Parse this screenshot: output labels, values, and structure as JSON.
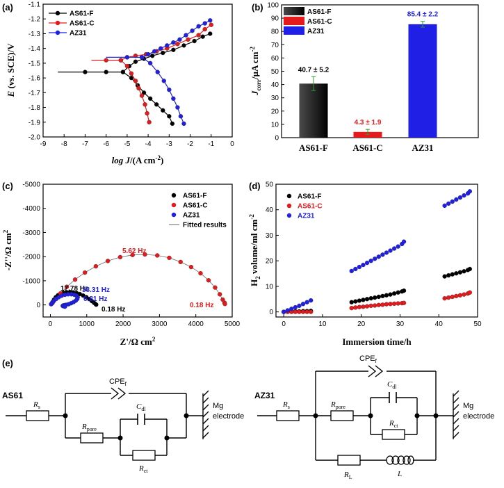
{
  "panels": {
    "a": "(a)",
    "b": "(b)",
    "c": "(c)",
    "d": "(d)",
    "e": "(e)"
  },
  "colors": {
    "AS61-F": "#000000",
    "AS61-C": "#e41a1c",
    "AZ31": "#1f1fe6"
  },
  "chart_data": [
    {
      "id": "a",
      "type": "line",
      "title": "",
      "xlabel": "log J/(A cm⁻²)",
      "ylabel": "E (vs. SCE)/V",
      "xlim": [
        -9,
        0
      ],
      "ylim": [
        -2.0,
        -1.1
      ],
      "xticks": [
        -9,
        -8,
        -7,
        -6,
        -5,
        -4,
        -3,
        -2,
        -1,
        0
      ],
      "yticks": [
        -2.0,
        -1.9,
        -1.8,
        -1.7,
        -1.6,
        -1.5,
        -1.4,
        -1.3,
        -1.2,
        -1.1
      ],
      "legend": [
        "AS61-F",
        "AS61-C",
        "AZ31"
      ],
      "legend_position": "top-left",
      "series": [
        {
          "name": "AS61-F",
          "cathodic": {
            "x": [
              -8.3,
              -7,
              -6,
              -5.2,
              -4.8,
              -4.5,
              -4.2,
              -3.9,
              -3.6,
              -3.3,
              -3.0,
              -2.85
            ],
            "y": [
              -1.56,
              -1.56,
              -1.56,
              -1.56,
              -1.6,
              -1.65,
              -1.7,
              -1.74,
              -1.78,
              -1.82,
              -1.86,
              -1.91
            ]
          },
          "anodic": {
            "x": [
              -5.2,
              -4.9,
              -4.6,
              -4.2,
              -3.8,
              -3.3,
              -2.8,
              -2.3,
              -1.8,
              -1.4,
              -1.05
            ],
            "y": [
              -1.56,
              -1.52,
              -1.49,
              -1.47,
              -1.45,
              -1.43,
              -1.41,
              -1.38,
              -1.35,
              -1.32,
              -1.3
            ]
          }
        },
        {
          "name": "AS61-C",
          "cathodic": {
            "x": [
              -6.7,
              -6.0,
              -5.3,
              -5.0,
              -4.8,
              -4.6,
              -4.45,
              -4.3,
              -4.15,
              -4.05,
              -3.95
            ],
            "y": [
              -1.48,
              -1.48,
              -1.48,
              -1.52,
              -1.57,
              -1.62,
              -1.67,
              -1.72,
              -1.78,
              -1.84,
              -1.9
            ]
          },
          "anodic": {
            "x": [
              -5.3,
              -5.0,
              -4.6,
              -4.1,
              -3.6,
              -3.1,
              -2.6,
              -2.1,
              -1.6,
              -1.3,
              -1.0
            ],
            "y": [
              -1.48,
              -1.46,
              -1.45,
              -1.44,
              -1.42,
              -1.4,
              -1.37,
              -1.34,
              -1.31,
              -1.27,
              -1.24
            ]
          }
        },
        {
          "name": "AZ31",
          "cathodic": {
            "x": [
              -6.0,
              -5.0,
              -4.3,
              -3.9,
              -3.55,
              -3.25,
              -3.0,
              -2.8,
              -2.6,
              -2.45,
              -2.3
            ],
            "y": [
              -1.46,
              -1.46,
              -1.46,
              -1.5,
              -1.56,
              -1.62,
              -1.68,
              -1.74,
              -1.8,
              -1.86,
              -1.91
            ]
          },
          "anodic": {
            "x": [
              -4.3,
              -4.0,
              -3.7,
              -3.4,
              -3.1,
              -2.8,
              -2.5,
              -2.2,
              -1.9,
              -1.6,
              -1.3,
              -1.05
            ],
            "y": [
              -1.46,
              -1.44,
              -1.42,
              -1.4,
              -1.38,
              -1.36,
              -1.34,
              -1.31,
              -1.28,
              -1.25,
              -1.23,
              -1.21
            ]
          }
        }
      ]
    },
    {
      "id": "b",
      "type": "bar",
      "title": "",
      "xlabel": "",
      "ylabel": "J_corr/μA cm⁻²",
      "ylabel_main": "J",
      "ylabel_sub": "corr",
      "ylabel_rest": "/μA cm",
      "ylabel_sup": "-2",
      "ylim": [
        0,
        100
      ],
      "yticks": [
        0,
        10,
        20,
        30,
        40,
        50,
        60,
        70,
        80,
        90,
        100
      ],
      "categories": [
        "AS61-F",
        "AS61-C",
        "AZ31"
      ],
      "values": [
        40.7,
        4.3,
        85.4
      ],
      "errors": [
        5.2,
        1.9,
        2.2
      ],
      "data_labels": [
        "40.7 ± 5.2",
        "4.3 ± 1.9",
        "85.4 ± 2.2"
      ],
      "legend": [
        "AS61-F",
        "AS61-C",
        "AZ31"
      ],
      "legend_position": "top-left"
    },
    {
      "id": "c",
      "type": "scatter",
      "title": "",
      "xlabel": "Z'/Ω cm²",
      "ylabel": "-Z''/Ω cm²",
      "xlim": [
        -200,
        5000
      ],
      "ylim": [
        -5000,
        500
      ],
      "xticks": [
        0,
        1000,
        2000,
        3000,
        4000,
        5000
      ],
      "yticks": [
        -5000,
        -4000,
        -3000,
        -2000,
        -1000,
        0
      ],
      "legend": [
        "AS61-F",
        "AS61-C",
        "AZ31",
        "Fitted results"
      ],
      "legend_position": "top-right",
      "series": [
        {
          "name": "AS61-F",
          "x": [
            30,
            60,
            100,
            150,
            210,
            280,
            360,
            450,
            540,
            630,
            720,
            810,
            900,
            990,
            1070,
            1140,
            1200,
            1240,
            1260
          ],
          "y": [
            -40,
            -120,
            -220,
            -320,
            -400,
            -460,
            -500,
            -525,
            -530,
            -520,
            -495,
            -450,
            -390,
            -320,
            -240,
            -160,
            -90,
            -40,
            -10
          ]
        },
        {
          "name": "AS61-C",
          "x": [
            60,
            150,
            280,
            450,
            680,
            950,
            1250,
            1580,
            1920,
            2260,
            2600,
            2940,
            3270,
            3580,
            3870,
            4130,
            4350,
            4530,
            4660,
            4740,
            4790,
            4800
          ],
          "y": [
            -80,
            -250,
            -480,
            -750,
            -1050,
            -1340,
            -1600,
            -1820,
            -1980,
            -2070,
            -2090,
            -2050,
            -1950,
            -1780,
            -1570,
            -1310,
            -1020,
            -720,
            -440,
            -220,
            -90,
            -40
          ]
        },
        {
          "name": "AZ31",
          "x": [
            20,
            50,
            100,
            160,
            230,
            310,
            400,
            490,
            580,
            660,
            720,
            750,
            740,
            700,
            640,
            570,
            500,
            430,
            380,
            350,
            340,
            360,
            400
          ],
          "y": [
            -30,
            -90,
            -170,
            -250,
            -320,
            -380,
            -420,
            -440,
            -440,
            -420,
            -380,
            -320,
            -250,
            -180,
            -120,
            -70,
            -30,
            -5,
            10,
            25,
            40,
            55,
            70
          ]
        }
      ],
      "annotations": [
        {
          "text": "5.62 Hz",
          "color": "AS61-C"
        },
        {
          "text": "0.18 Hz",
          "color": "AS61-C"
        },
        {
          "text": "17.78 Hz",
          "color": "AS61-F"
        },
        {
          "text": "0.18 Hz",
          "color": "AS61-F"
        },
        {
          "text": "38.31 Hz",
          "color": "AZ31"
        },
        {
          "text": "6.81 Hz",
          "color": "AZ31"
        }
      ]
    },
    {
      "id": "d",
      "type": "scatter",
      "title": "",
      "xlabel": "Immersion time/h",
      "ylabel": "H₂ volume/ml cm⁻²",
      "ylabel_main": "H",
      "ylabel_sub": "2",
      "ylabel_rest": " volume/ml cm",
      "ylabel_sup": "-2",
      "xlim": [
        -2,
        50
      ],
      "ylim": [
        -2,
        50
      ],
      "xticks": [
        0,
        10,
        20,
        30,
        40,
        50
      ],
      "yticks": [
        0,
        10,
        20,
        30,
        40,
        50
      ],
      "legend": [
        "AS61-F",
        "AS61-C",
        "AZ31"
      ],
      "legend_position": "top-left",
      "series": [
        {
          "name": "AS61-F",
          "x": [
            0,
            1,
            2,
            3,
            4,
            5,
            6,
            7,
            17.5,
            18.5,
            19.5,
            20.5,
            21.5,
            22.5,
            23.5,
            24.5,
            25.5,
            26.5,
            27.5,
            28.5,
            29.5,
            30.5,
            31,
            41.5,
            42.5,
            43.5,
            44.5,
            45.5,
            46.5,
            47.5,
            48
          ],
          "y": [
            0,
            0.1,
            0.1,
            0.2,
            0.2,
            0.3,
            0.3,
            0.4,
            3.8,
            4.1,
            4.4,
            4.7,
            5.0,
            5.3,
            5.6,
            5.9,
            6.2,
            6.5,
            6.8,
            7.2,
            7.6,
            8.0,
            8.3,
            13.9,
            14.3,
            14.7,
            15.1,
            15.5,
            15.9,
            16.4,
            16.8
          ]
        },
        {
          "name": "AS61-C",
          "x": [
            0,
            1,
            2,
            3,
            4,
            5,
            6,
            7,
            17.5,
            18.5,
            19.5,
            20.5,
            21.5,
            22.5,
            23.5,
            24.5,
            25.5,
            26.5,
            27.5,
            28.5,
            29.5,
            30.5,
            31,
            41.5,
            42.5,
            43.5,
            44.5,
            45.5,
            46.5,
            47.5,
            48
          ],
          "y": [
            0,
            0,
            0,
            0,
            0,
            0,
            0,
            0,
            1.5,
            1.7,
            1.9,
            2.0,
            2.2,
            2.4,
            2.5,
            2.7,
            2.8,
            3.0,
            3.1,
            3.2,
            3.3,
            3.4,
            3.5,
            5.3,
            5.6,
            5.9,
            6.2,
            6.5,
            6.8,
            7.2,
            7.6
          ]
        },
        {
          "name": "AZ31",
          "x": [
            0,
            1,
            2,
            3,
            4,
            5,
            6,
            7,
            17.5,
            18.5,
            19.5,
            20.5,
            21.5,
            22.5,
            23.5,
            24.5,
            25.5,
            26.5,
            27.5,
            28.5,
            29.5,
            30.5,
            31,
            41.5,
            42.5,
            43.5,
            44.5,
            45.5,
            46.5,
            47.5,
            48
          ],
          "y": [
            0,
            0.6,
            1.2,
            1.8,
            2.4,
            3.1,
            3.8,
            4.5,
            16.0,
            16.8,
            17.6,
            18.4,
            19.2,
            20.0,
            20.8,
            21.6,
            22.4,
            23.2,
            24.0,
            24.8,
            25.6,
            26.6,
            27.5,
            41.6,
            42.4,
            43.2,
            44.0,
            44.8,
            45.6,
            46.4,
            47.2
          ]
        }
      ]
    }
  ],
  "circuits": {
    "as61": {
      "title": "AS61",
      "rs": "R",
      "rs_sub": "s",
      "cpe": "CPE",
      "cpe_sub": "f",
      "rpore": "R",
      "rpore_sub": "pore",
      "cdl": "C",
      "cdl_sub": "dl",
      "rct": "R",
      "rct_sub": "ct",
      "electrode_1": "Mg",
      "electrode_2": "electrode"
    },
    "az31": {
      "title": "AZ31",
      "rs": "R",
      "rs_sub": "s",
      "cpe": "CPE",
      "cpe_sub": "f",
      "rpore": "R",
      "rpore_sub": "pore",
      "cdl": "C",
      "cdl_sub": "dl",
      "rct": "R",
      "rct_sub": "ct",
      "rl": "R",
      "rl_sub": "L",
      "l": "L",
      "electrode_1": "Mg",
      "electrode_2": "electrode"
    }
  }
}
